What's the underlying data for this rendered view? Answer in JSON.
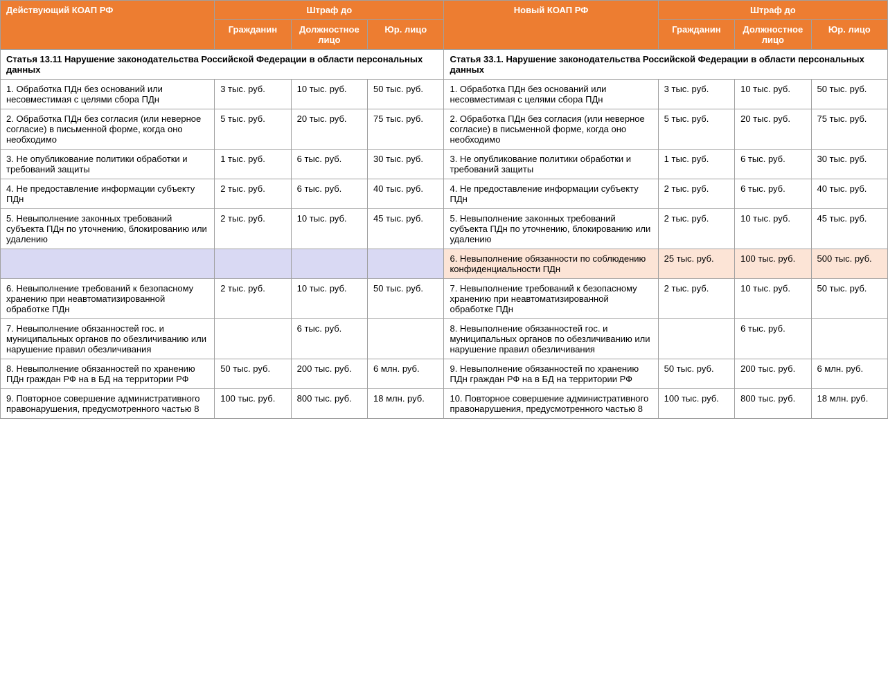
{
  "header": {
    "left_title": "Действующий КОАП РФ",
    "right_title": "Новый КОАП РФ",
    "fine_up_to": "Штраф до",
    "col_citizen": "Гражданин",
    "col_official": "Должностное лицо",
    "col_legal": "Юр. лицо"
  },
  "section": {
    "left": "Статья 13.11 Нарушение законодательства Российской Федерации в области персональных данных",
    "right": "Статья 33.1. Нарушение законодательства Российской Федерации в области персональных данных"
  },
  "rows": [
    {
      "left_desc": "1. Обработка ПДн без оснований или несовместимая с целями сбора ПДн",
      "left_c": "3 тыс. руб.",
      "left_o": "10 тыс. руб.",
      "left_l": "50 тыс. руб.",
      "right_desc": "1. Обработка ПДн без оснований или несовместимая с целями сбора ПДн",
      "right_c": "3 тыс. руб.",
      "right_o": "10 тыс. руб.",
      "right_l": "50 тыс. руб."
    },
    {
      "left_desc": "2. Обработка ПДн без согласия (или неверное согласие) в письменной форме, когда оно необходимо",
      "left_c": "5 тыс. руб.",
      "left_o": "20 тыс. руб.",
      "left_l": "75 тыс. руб.",
      "right_desc": "2. Обработка ПДн без согласия (или неверное согласие) в письменной форме, когда оно необходимо",
      "right_c": "5 тыс. руб.",
      "right_o": "20 тыс. руб.",
      "right_l": "75 тыс. руб."
    },
    {
      "left_desc": "3. Не опубликование политики обработки и требований защиты",
      "left_c": "1 тыс. руб.",
      "left_o": "6 тыс. руб.",
      "left_l": "30 тыс. руб.",
      "right_desc": "3. Не опубликование политики обработки и требований защиты",
      "right_c": "1 тыс. руб.",
      "right_o": "6 тыс. руб.",
      "right_l": "30 тыс. руб."
    },
    {
      "left_desc": "4. Не предоставление информации субъекту ПДн",
      "left_c": "2 тыс. руб.",
      "left_o": "6 тыс. руб.",
      "left_l": "40 тыс. руб.",
      "right_desc": "4. Не предоставление информации субъекту ПДн",
      "right_c": "2 тыс. руб.",
      "right_o": "6 тыс. руб.",
      "right_l": "40 тыс. руб."
    },
    {
      "left_desc": "5. Невыполнение законных требований субъекта ПДн по уточнению, блокированию или удалению",
      "left_c": "2 тыс. руб.",
      "left_o": "10 тыс. руб.",
      "left_l": "45 тыс. руб.",
      "right_desc": "5. Невыполнение законных требований субъекта ПДн по уточнению, блокированию или удалению",
      "right_c": "2 тыс. руб.",
      "right_o": "10 тыс. руб.",
      "right_l": "45 тыс. руб."
    },
    {
      "left_desc": "",
      "left_c": "",
      "left_o": "",
      "left_l": "",
      "right_desc": "6. Невыполнение обязанности по соблюдению конфиденциальности ПДн",
      "right_c": "25 тыс. руб.",
      "right_o": "100 тыс. руб.",
      "right_l": "500 тыс. руб.",
      "left_bg": "bg-lightblue",
      "right_bg": "bg-lightorange"
    },
    {
      "left_desc": "6. Невыполнение требований к безопасному хранению при неавтоматизированной обработке ПДн",
      "left_c": "2 тыс. руб.",
      "left_o": "10 тыс. руб.",
      "left_l": "50 тыс. руб.",
      "right_desc": "7. Невыполнение требований к безопасному хранению при неавтоматизированной обработке ПДн",
      "right_c": "2 тыс. руб.",
      "right_o": "10 тыс. руб.",
      "right_l": "50 тыс. руб."
    },
    {
      "left_desc": "7. Невыполнение обязанностей гос. и муниципальных органов по обезличиванию или нарушение правил обезличивания",
      "left_c": "",
      "left_o": "6 тыс. руб.",
      "left_l": "",
      "right_desc": "8. Невыполнение обязанностей гос. и муниципальных органов по обезличиванию или нарушение правил обезличивания",
      "right_c": "",
      "right_o": "6 тыс. руб.",
      "right_l": ""
    },
    {
      "left_desc": "8. Невыполнение обязанностей по хранению ПДн граждан РФ на в БД на территории РФ",
      "left_c": "50 тыс. руб.",
      "left_o": "200 тыс. руб.",
      "left_l": "6 млн. руб.",
      "right_desc": "9. Невыполнение обязанностей по хранению ПДн граждан РФ на в БД на территории РФ",
      "right_c": "50 тыс. руб.",
      "right_o": "200 тыс. руб.",
      "right_l": "6 млн. руб."
    },
    {
      "left_desc": "9. Повторное совершение административного правонарушения, предусмотренного частью 8",
      "left_c": "100 тыс. руб.",
      "left_o": "800 тыс. руб.",
      "left_l": "18 млн. руб.",
      "right_desc": "10. Повторное совершение административного правонарушения, предусмотренного частью 8",
      "right_c": "100 тыс. руб.",
      "right_o": "800 тыс. руб.",
      "right_l": "18 млн. руб."
    }
  ]
}
